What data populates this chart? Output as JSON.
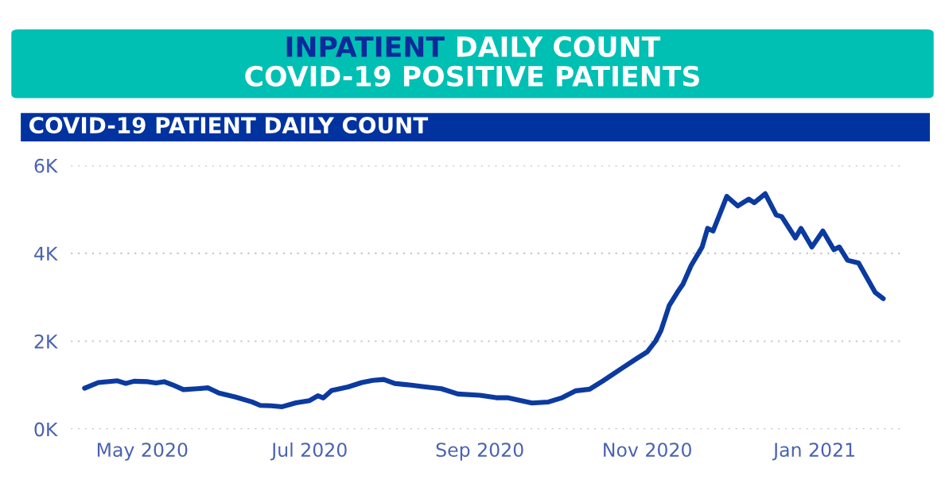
{
  "chart_data": {
    "type": "line",
    "title": "INPATIENT DAILY COUNT",
    "subtitle": "COVID-19 POSITIVE PATIENTS",
    "annotations": [
      "COVID-19 PATIENT DAILY COUNT"
    ],
    "x": [
      "2020-04-10",
      "2020-04-15",
      "2020-04-22",
      "2020-04-25",
      "2020-04-28",
      "2020-05-03",
      "2020-05-06",
      "2020-05-09",
      "2020-05-12",
      "2020-05-16",
      "2020-05-21",
      "2020-05-25",
      "2020-05-29",
      "2020-06-04",
      "2020-06-10",
      "2020-06-13",
      "2020-06-17",
      "2020-06-21",
      "2020-06-26",
      "2020-07-01",
      "2020-07-04",
      "2020-07-06",
      "2020-07-09",
      "2020-07-15",
      "2020-07-20",
      "2020-07-24",
      "2020-07-28",
      "2020-08-01",
      "2020-08-07",
      "2020-08-11",
      "2020-08-18",
      "2020-08-24",
      "2020-09-01",
      "2020-09-07",
      "2020-09-11",
      "2020-09-20",
      "2020-09-26",
      "2020-10-01",
      "2020-10-06",
      "2020-10-11",
      "2020-10-16",
      "2020-10-23",
      "2020-10-28",
      "2020-11-01",
      "2020-11-04",
      "2020-11-06",
      "2020-11-09",
      "2020-11-12",
      "2020-11-14",
      "2020-11-17",
      "2020-11-21",
      "2020-11-23",
      "2020-11-25",
      "2020-11-30",
      "2020-12-04",
      "2020-12-08",
      "2020-12-10",
      "2020-12-14",
      "2020-12-18",
      "2020-12-20",
      "2020-12-25",
      "2020-12-27",
      "2020-12-31",
      "2021-01-04",
      "2021-01-08",
      "2021-01-10",
      "2021-01-13",
      "2021-01-17",
      "2021-01-23",
      "2021-01-26"
    ],
    "series": [
      {
        "color": "#0b3aa0",
        "values": [
          930,
          1060,
          1100,
          1040,
          1090,
          1080,
          1050,
          1080,
          1010,
          900,
          920,
          940,
          820,
          730,
          620,
          540,
          530,
          510,
          600,
          650,
          760,
          710,
          880,
          960,
          1060,
          1110,
          1130,
          1040,
          1000,
          970,
          920,
          800,
          770,
          715,
          715,
          594,
          618,
          715,
          873,
          909,
          1103,
          1394,
          1600,
          1757,
          2000,
          2242,
          2812,
          3115,
          3297,
          3721,
          4145,
          4569,
          4509,
          5296,
          5078,
          5236,
          5151,
          5357,
          4872,
          4836,
          4351,
          4569,
          4145,
          4509,
          4084,
          4145,
          3842,
          3781,
          3115,
          2969
        ]
      }
    ],
    "xlim": [
      "2020-04-05",
      "2021-02-02"
    ],
    "xticks": [
      {
        "value": "2020-05-01",
        "label": "May 2020"
      },
      {
        "value": "2020-07-01",
        "label": "Jul 2020"
      },
      {
        "value": "2020-09-01",
        "label": "Sep 2020"
      },
      {
        "value": "2020-11-01",
        "label": "Nov 2020"
      },
      {
        "value": "2021-01-01",
        "label": "Jan 2021"
      }
    ],
    "ylim": [
      0,
      6000
    ],
    "yticks": [
      {
        "value": 0,
        "label": "0K"
      },
      {
        "value": 2000,
        "label": "2K"
      },
      {
        "value": 4000,
        "label": "4K"
      },
      {
        "value": 6000,
        "label": "6K"
      }
    ],
    "grid": "y",
    "legend": false,
    "marker": "none",
    "line_style": "solid"
  }
}
